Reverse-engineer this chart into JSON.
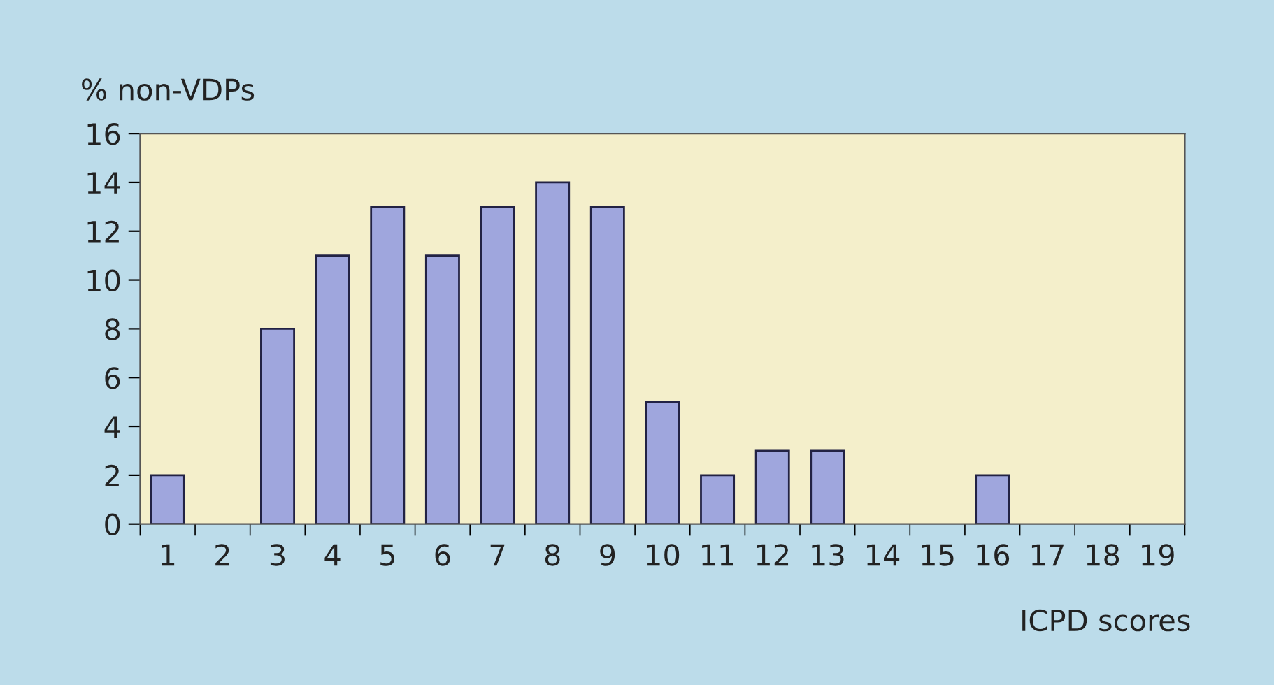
{
  "chart_data": {
    "type": "bar",
    "xlabel": "ICPD scores",
    "ylabel": "% non-VDPs",
    "categories": [
      "1",
      "2",
      "3",
      "4",
      "5",
      "6",
      "7",
      "8",
      "9",
      "10",
      "11",
      "12",
      "13",
      "14",
      "15",
      "16",
      "17",
      "18",
      "19"
    ],
    "values": [
      2,
      0,
      8,
      11,
      13,
      11,
      13,
      14,
      13,
      5,
      2,
      3,
      3,
      0,
      0,
      2,
      0,
      0,
      0
    ],
    "color": "#9fa6dd",
    "ylim": [
      0,
      16
    ],
    "yticks": [
      0,
      2,
      4,
      6,
      8,
      10,
      12,
      14,
      16
    ],
    "grid": false,
    "legend": false
  }
}
